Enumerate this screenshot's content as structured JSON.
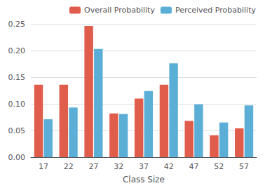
{
  "chart_data": {
    "type": "bar",
    "xlabel": "Class Size",
    "categories": [
      "17",
      "22",
      "27",
      "32",
      "37",
      "42",
      "47",
      "52",
      "57"
    ],
    "series": [
      {
        "name": "Overall Probability",
        "color": "#E05C4B",
        "values": [
          0.136,
          0.136,
          0.246,
          0.082,
          0.11,
          0.136,
          0.068,
          0.041,
          0.054
        ]
      },
      {
        "name": "Perceived Probability",
        "color": "#5BAFD6",
        "values": [
          0.071,
          0.093,
          0.203,
          0.081,
          0.124,
          0.176,
          0.099,
          0.065,
          0.097
        ]
      }
    ],
    "ylim": [
      0,
      0.25
    ],
    "yticks": [
      {
        "value": 0.0,
        "label": "0.00"
      },
      0.05,
      {
        "value": 0.1,
        "label": "0.10"
      },
      0.15,
      {
        "value": 0.2,
        "label": "0.20"
      },
      0.25
    ],
    "grid": true,
    "legend": "upper right"
  }
}
